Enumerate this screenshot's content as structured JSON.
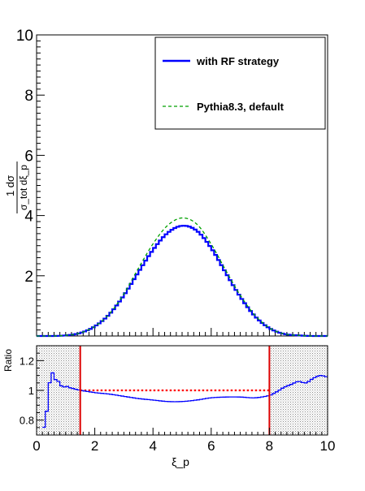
{
  "chart_data": [
    {
      "panel": "main",
      "type": "line",
      "ylabel": "1/σ_tot dσ/dξ_p",
      "ylabel_numerator": "1 dσ",
      "ylabel_denominator": "σ_tot dξ_p",
      "xlim": [
        0,
        10
      ],
      "ylim": [
        0,
        10
      ],
      "yticks": [
        2,
        4,
        6,
        8,
        10
      ],
      "y_ticklabels": [
        "2",
        "4",
        "6",
        "8",
        "10"
      ],
      "legend_position": "top-right",
      "x": [
        0.0,
        0.5,
        1.0,
        1.5,
        2.0,
        2.5,
        3.0,
        3.5,
        4.0,
        4.5,
        5.0,
        5.5,
        6.0,
        6.5,
        7.0,
        7.5,
        8.0,
        8.5,
        9.0,
        9.5,
        10.0
      ],
      "series": [
        {
          "name": "with RF strategy",
          "style": "solid step",
          "color": "#0000ff",
          "values": [
            0.0,
            0.0,
            0.02,
            0.1,
            0.32,
            0.72,
            1.35,
            2.12,
            2.86,
            3.42,
            3.66,
            3.5,
            2.92,
            2.1,
            1.3,
            0.66,
            0.26,
            0.07,
            0.02,
            0.0,
            0.0
          ]
        },
        {
          "name": "Pythia8.3, default",
          "style": "dashed",
          "color": "#00a000",
          "values": [
            0.0,
            0.0,
            0.02,
            0.1,
            0.32,
            0.73,
            1.4,
            2.25,
            3.06,
            3.67,
            3.92,
            3.72,
            3.05,
            2.18,
            1.35,
            0.69,
            0.27,
            0.07,
            0.02,
            0.0,
            0.0
          ]
        }
      ]
    },
    {
      "panel": "ratio",
      "type": "line",
      "xlabel": "ξ_p",
      "ylabel": "Ratio",
      "xlim": [
        0,
        10
      ],
      "ylim": [
        0.7,
        1.3
      ],
      "xticks": [
        0,
        2,
        4,
        6,
        8,
        10
      ],
      "x_ticklabels": [
        "0",
        "2",
        "4",
        "6",
        "8",
        "10"
      ],
      "yticks": [
        0.8,
        1.0,
        1.2
      ],
      "y_ticklabels": [
        "0.8",
        "1",
        "1.2"
      ],
      "shaded_regions": [
        [
          0,
          1.5
        ],
        [
          8,
          10
        ]
      ],
      "boundary_lines": [
        1.5,
        8
      ],
      "reference_line": {
        "y": 1.0,
        "x_range": [
          1.5,
          8
        ],
        "style": "dotted",
        "color": "#ff0000"
      },
      "ratio_x": [
        0.2,
        0.35,
        0.5,
        0.6,
        0.75,
        0.9,
        1.0,
        1.1,
        1.3,
        1.5,
        2.0,
        2.5,
        3.0,
        3.5,
        4.0,
        4.5,
        5.0,
        5.5,
        6.0,
        6.5,
        7.0,
        7.5,
        8.0,
        8.25,
        8.5,
        8.75,
        9.0,
        9.25,
        9.5,
        9.75,
        10.0
      ],
      "ratio_y": [
        0.72,
        0.86,
        1.12,
        1.08,
        1.06,
        1.02,
        1.03,
        1.02,
        1.01,
        1.0,
        0.985,
        0.975,
        0.96,
        0.945,
        0.935,
        0.925,
        0.925,
        0.935,
        0.95,
        0.955,
        0.955,
        0.95,
        0.965,
        0.99,
        1.02,
        1.04,
        1.06,
        1.05,
        1.08,
        1.1,
        1.09
      ],
      "ratio_color": "#0000ff",
      "boundary_color": "#dd0000"
    }
  ]
}
